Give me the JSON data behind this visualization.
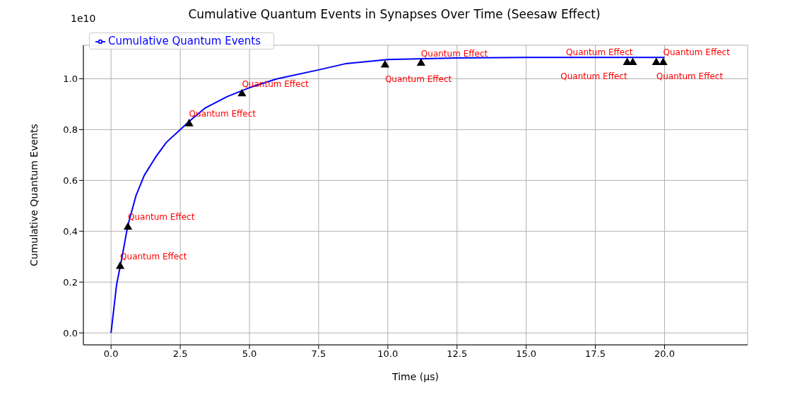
{
  "chart_data": {
    "type": "line",
    "title": "Cumulative Quantum Events in Synapses Over Time (Seesaw Effect)",
    "xlabel": "Time (µs)",
    "ylabel": "Cumulative Quantum Events",
    "series": [
      {
        "type": "line",
        "name": "Cumulative Quantum Events",
        "color": "#0000ff",
        "x": [
          0,
          0.2,
          0.4,
          0.6,
          0.9,
          1.2,
          1.6,
          2.0,
          2.8,
          3.4,
          4.2,
          5.0,
          6.0,
          7.5,
          8.5,
          10.0,
          12.5,
          15.0,
          20.0
        ],
        "values": [
          0,
          0.19,
          0.3,
          0.42,
          0.54,
          0.62,
          0.69,
          0.75,
          0.83,
          0.885,
          0.93,
          0.965,
          1.0,
          1.035,
          1.06,
          1.076,
          1.082,
          1.084,
          1.084
        ]
      },
      {
        "type": "scatter",
        "color": "#000000",
        "marker": "triangle",
        "x": [
          0.33,
          0.61,
          2.82,
          4.73,
          9.9,
          11.2,
          18.65,
          18.85,
          19.7,
          19.95
        ],
        "values": [
          0.262,
          0.416,
          0.823,
          0.941,
          1.054,
          1.061,
          1.064,
          1.064,
          1.064,
          1.064
        ]
      }
    ],
    "annotations": [
      "1e10",
      {
        "text": "Quantum Effect",
        "x": 0.33,
        "y": 0.262
      },
      {
        "text": "Quantum Effect",
        "x": 0.61,
        "y": 0.416
      },
      {
        "text": "Quantum Effect",
        "x": 2.82,
        "y": 0.823
      },
      {
        "text": "Quantum Effect",
        "x": 4.73,
        "y": 0.941
      },
      {
        "text": "Quantum Effect",
        "x": 9.9,
        "y": 1.054
      },
      {
        "text": "Quantum Effect",
        "x": 11.2,
        "y": 1.061
      },
      {
        "text": "Quantum Effect",
        "x": 18.65,
        "y": 1.064
      },
      {
        "text": "Quantum Effect",
        "x": 18.85,
        "y": 1.064
      },
      {
        "text": "Quantum Effect",
        "x": 19.7,
        "y": 1.064
      },
      {
        "text": "Quantum Effect",
        "x": 19.95,
        "y": 1.064
      }
    ],
    "xlim": [
      -1,
      23
    ],
    "ylim": [
      -0.047,
      1.132
    ],
    "xticks": [
      {
        "value": 0,
        "label": "0.0"
      },
      {
        "value": 2.5,
        "label": "2.5"
      },
      {
        "value": 5,
        "label": "5.0"
      },
      {
        "value": 7.5,
        "label": "7.5"
      },
      {
        "value": 10,
        "label": "10.0"
      },
      {
        "value": 12.5,
        "label": "12.5"
      },
      {
        "value": 15,
        "label": "15.0"
      },
      {
        "value": 17.5,
        "label": "17.5"
      },
      {
        "value": 20,
        "label": "20.0"
      }
    ],
    "yticks": [
      {
        "value": 0,
        "label": "0.0"
      },
      {
        "value": 0.2,
        "label": "0.2"
      },
      {
        "value": 0.4,
        "label": "0.4"
      },
      {
        "value": 0.6,
        "label": "0.6"
      },
      {
        "value": 0.8,
        "label": "0.8"
      },
      {
        "value": 1.0,
        "label": "1.0"
      }
    ],
    "grid": true,
    "legend": "top left"
  }
}
